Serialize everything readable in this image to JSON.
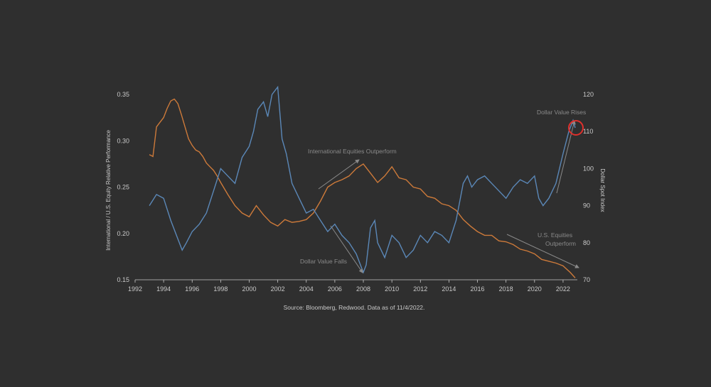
{
  "colors": {
    "background": "#2f2f2f",
    "equity_series": "#cd7a3a",
    "dollar_series": "#5b88b8",
    "annotation": "#8a8a8a",
    "highlight_circle": "#e0302c",
    "text": "#c9c9c9"
  },
  "chart_data": {
    "type": "line",
    "xlabel": "",
    "ylabel_left": "International / U.S. Equity Relative Performance",
    "ylabel_right": "Dollar Spot Index",
    "xlim": [
      1992,
      2023
    ],
    "ylim_left": [
      0.15,
      0.35
    ],
    "ylim_right": [
      70,
      120
    ],
    "x_ticks": [
      "1992",
      "1994",
      "1996",
      "1998",
      "2000",
      "2002",
      "2004",
      "2006",
      "2008",
      "2010",
      "2012",
      "2014",
      "2016",
      "2018",
      "2020",
      "2022"
    ],
    "y_ticks_left": [
      "0.35",
      "0.30",
      "0.25",
      "0.20",
      "0.15"
    ],
    "y_ticks_right": [
      "120",
      "110",
      "100",
      "90",
      "80",
      "70"
    ],
    "grid": false,
    "legend": "none",
    "series": [
      {
        "axis": "left",
        "color": "#cd7a3a",
        "x": [
          1993.0,
          1993.25,
          1993.5,
          1993.75,
          1994.0,
          1994.25,
          1994.5,
          1994.75,
          1995.0,
          1995.25,
          1995.5,
          1995.75,
          1996.0,
          1996.25,
          1996.5,
          1996.75,
          1997.0,
          1997.25,
          1997.5,
          1997.75,
          1998.0,
          1998.5,
          1999.0,
          1999.5,
          2000.0,
          2000.5,
          2001.0,
          2001.5,
          2002.0,
          2002.5,
          2003.0,
          2003.5,
          2004.0,
          2004.5,
          2005.0,
          2005.5,
          2006.0,
          2006.5,
          2007.0,
          2007.5,
          2008.0,
          2008.5,
          2009.0,
          2009.5,
          2010.0,
          2010.5,
          2011.0,
          2011.5,
          2012.0,
          2012.5,
          2013.0,
          2013.5,
          2014.0,
          2014.5,
          2015.0,
          2015.5,
          2016.0,
          2016.5,
          2017.0,
          2017.5,
          2018.0,
          2018.5,
          2019.0,
          2019.5,
          2020.0,
          2020.5,
          2021.0,
          2021.5,
          2022.0,
          2022.5,
          2022.85
        ],
        "y": [
          0.285,
          0.283,
          0.315,
          0.32,
          0.325,
          0.335,
          0.343,
          0.345,
          0.34,
          0.328,
          0.315,
          0.302,
          0.295,
          0.29,
          0.288,
          0.283,
          0.276,
          0.272,
          0.268,
          0.262,
          0.255,
          0.242,
          0.23,
          0.222,
          0.218,
          0.23,
          0.22,
          0.212,
          0.208,
          0.215,
          0.212,
          0.213,
          0.215,
          0.222,
          0.235,
          0.25,
          0.255,
          0.258,
          0.262,
          0.27,
          0.275,
          0.265,
          0.255,
          0.262,
          0.272,
          0.26,
          0.258,
          0.25,
          0.248,
          0.24,
          0.238,
          0.232,
          0.23,
          0.225,
          0.215,
          0.208,
          0.202,
          0.198,
          0.198,
          0.192,
          0.191,
          0.188,
          0.183,
          0.181,
          0.178,
          0.172,
          0.17,
          0.168,
          0.165,
          0.158,
          0.152
        ]
      },
      {
        "axis": "right",
        "color": "#5b88b8",
        "x": [
          1993.0,
          1993.5,
          1994.0,
          1994.5,
          1995.0,
          1995.3,
          1995.6,
          1996.0,
          1996.5,
          1997.0,
          1997.5,
          1998.0,
          1998.5,
          1999.0,
          1999.5,
          2000.0,
          2000.3,
          2000.6,
          2001.0,
          2001.3,
          2001.6,
          2002.0,
          2002.3,
          2002.6,
          2003.0,
          2003.5,
          2004.0,
          2004.5,
          2005.0,
          2005.5,
          2006.0,
          2006.5,
          2007.0,
          2007.5,
          2008.0,
          2008.2,
          2008.5,
          2008.8,
          2009.0,
          2009.5,
          2010.0,
          2010.5,
          2011.0,
          2011.5,
          2012.0,
          2012.5,
          2013.0,
          2013.5,
          2014.0,
          2014.5,
          2015.0,
          2015.3,
          2015.6,
          2016.0,
          2016.5,
          2017.0,
          2017.5,
          2018.0,
          2018.5,
          2019.0,
          2019.5,
          2020.0,
          2020.3,
          2020.6,
          2021.0,
          2021.5,
          2022.0,
          2022.4,
          2022.7,
          2022.85
        ],
        "y": [
          90,
          93,
          92,
          86,
          81,
          78,
          80,
          83,
          85,
          88,
          94,
          100,
          98,
          96,
          103,
          106,
          110,
          116,
          118,
          114,
          120,
          122,
          108,
          104,
          96,
          92,
          88,
          89,
          86,
          83,
          85,
          82,
          80,
          77,
          72,
          74,
          84,
          86,
          80,
          76,
          82,
          80,
          76,
          78,
          82,
          80,
          83,
          82,
          80,
          86,
          96,
          98,
          95,
          97,
          98,
          96,
          94,
          92,
          95,
          97,
          96,
          98,
          92,
          90,
          92,
          96,
          104,
          110,
          113,
          111
        ]
      }
    ],
    "annotations": [
      {
        "text": "International Equities Outperform"
      },
      {
        "text": "Dollar Value Rises"
      },
      {
        "text": "U.S. Equities"
      },
      {
        "text": "Outperform"
      },
      {
        "text": "Dollar Value Falls"
      }
    ],
    "source": "Source: Bloomberg, Redwood. Data as of 11/4/2022."
  }
}
